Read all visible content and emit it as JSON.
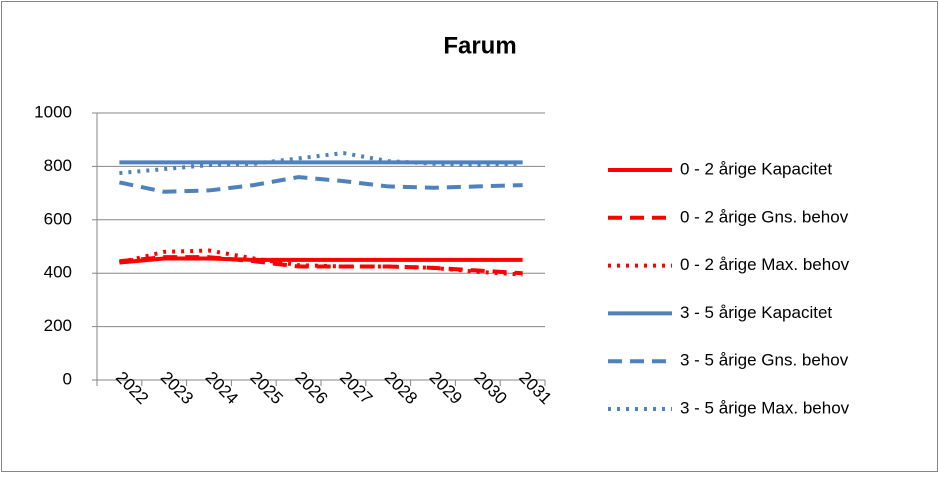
{
  "chart_data": {
    "type": "line",
    "title": "Farum",
    "categories": [
      "2022",
      "2023",
      "2024",
      "2025",
      "2026",
      "2027",
      "2028",
      "2029",
      "2030",
      "2031"
    ],
    "ylim": [
      0,
      1000
    ],
    "yticks": [
      0,
      200,
      400,
      600,
      800,
      1000
    ],
    "grid": true,
    "legend": "right",
    "series": [
      {
        "name": "0 - 2 årige Kapacitet",
        "color": "#ff0000",
        "dash": "solid",
        "values": [
          440,
          455,
          455,
          450,
          450,
          450,
          450,
          450,
          450,
          450
        ]
      },
      {
        "name": "0 - 2 årige Gns. behov",
        "color": "#ff0000",
        "dash": "dash",
        "values": [
          445,
          460,
          460,
          445,
          425,
          425,
          425,
          420,
          410,
          400
        ]
      },
      {
        "name": "0 - 2 årige Max. behov",
        "color": "#ff0000",
        "dash": "dot",
        "values": [
          440,
          480,
          485,
          455,
          430,
          425,
          425,
          420,
          405,
          395
        ]
      },
      {
        "name": "3 - 5 årige Kapacitet",
        "color": "#4f81bd",
        "dash": "solid",
        "values": [
          815,
          815,
          815,
          815,
          815,
          815,
          815,
          815,
          815,
          815
        ]
      },
      {
        "name": "3 - 5 årige Gns. behov",
        "color": "#4f81bd",
        "dash": "dash",
        "values": [
          740,
          705,
          710,
          730,
          760,
          745,
          725,
          720,
          725,
          730
        ]
      },
      {
        "name": "3 - 5 årige Max. behov",
        "color": "#4f81bd",
        "dash": "dot",
        "values": [
          775,
          790,
          805,
          810,
          830,
          850,
          820,
          810,
          805,
          810
        ]
      }
    ]
  }
}
